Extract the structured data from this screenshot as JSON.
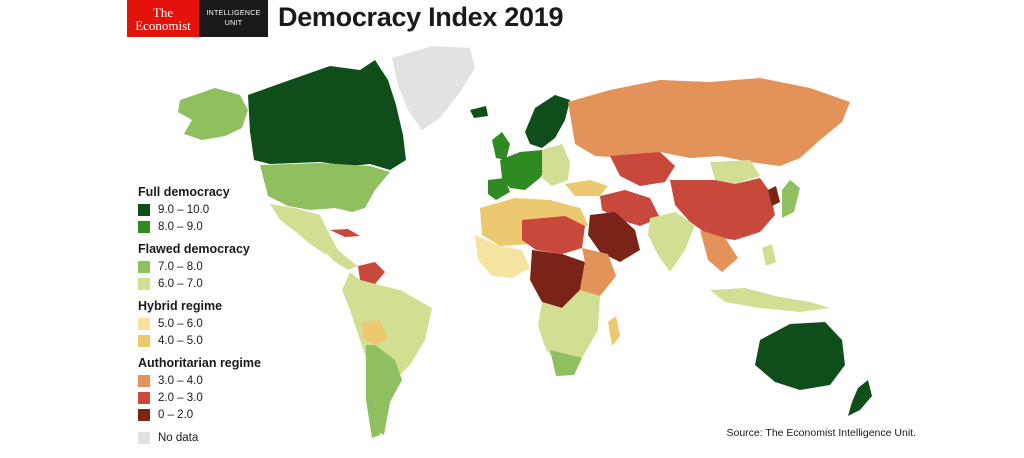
{
  "header": {
    "logo_line1": "The",
    "logo_line2": "Economist",
    "unit_line1": "INTELLIGENCE",
    "unit_line2": "UNIT",
    "title": "Democracy Index 2019"
  },
  "legend": {
    "groups": [
      {
        "name": "Full democracy",
        "items": [
          {
            "label": "9.0 – 10.0",
            "color": "#0f4d1a"
          },
          {
            "label": "8.0 – 9.0",
            "color": "#2f8a22"
          }
        ]
      },
      {
        "name": "Flawed democracy",
        "items": [
          {
            "label": "7.0 – 8.0",
            "color": "#8fbf5e"
          },
          {
            "label": "6.0 – 7.0",
            "color": "#d2df93"
          }
        ]
      },
      {
        "name": "Hybrid regime",
        "items": [
          {
            "label": "5.0 – 6.0",
            "color": "#f5e4a0"
          },
          {
            "label": "4.0 – 5.0",
            "color": "#ecc870"
          }
        ]
      },
      {
        "name": "Authoritarian regime",
        "items": [
          {
            "label": "3.0 – 4.0",
            "color": "#e39259"
          },
          {
            "label": "2.0 – 3.0",
            "color": "#c9483c"
          },
          {
            "label": "0 – 2.0",
            "color": "#7a2418"
          }
        ]
      }
    ],
    "no_data": {
      "label": "No data",
      "color": "#e2e2e2"
    }
  },
  "source": "Source: The Economist Intelligence Unit."
}
